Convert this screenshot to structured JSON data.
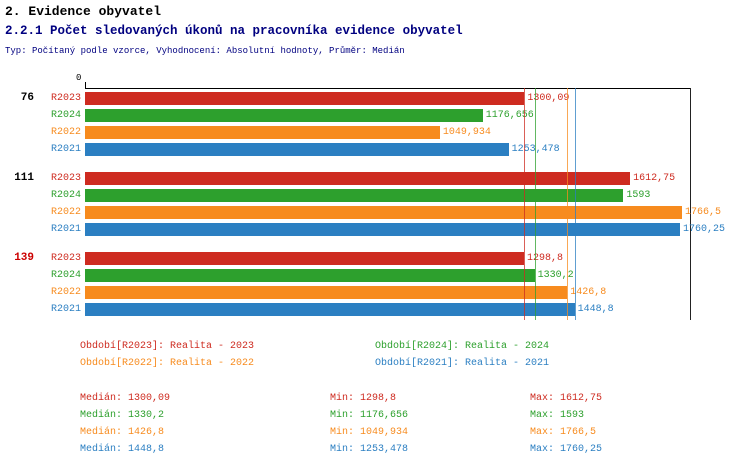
{
  "title": "2. Evidence obyvatel",
  "subtitle": "2.2.1 Počet sledovaných úkonů na pracovníka evidence obyvatel",
  "meta_line": "Typ: Počítaný podle vzorce, Vyhodnocení: Absolutní hodnoty, Průměr: Medián",
  "colors": {
    "title": "#000000",
    "subtitle": "#000080",
    "meta": "#000080",
    "axis": "#000000",
    "series": {
      "R2023": "#CE2B20",
      "R2024": "#2DA02D",
      "R2022": "#F78B1E",
      "R2021": "#2B7FC2"
    }
  },
  "chart_data": {
    "type": "bar",
    "orientation": "horizontal",
    "title": "2.2.1 Počet sledovaných úkonů na pracovníka evidence obyvatel",
    "x_axis": {
      "origin_label": "0",
      "range": [
        0,
        1790
      ],
      "gridlines": false
    },
    "series_order": [
      "R2023",
      "R2024",
      "R2022",
      "R2021"
    ],
    "groups": [
      {
        "label": "76",
        "label_color": "#000000",
        "bars": [
          {
            "series": "R2023",
            "value": 1300.09,
            "value_label": "1300,09"
          },
          {
            "series": "R2024",
            "value": 1176.656,
            "value_label": "1176,656"
          },
          {
            "series": "R2022",
            "value": 1049.934,
            "value_label": "1049,934"
          },
          {
            "series": "R2021",
            "value": 1253.478,
            "value_label": "1253,478"
          }
        ]
      },
      {
        "label": "111",
        "label_color": "#000000",
        "bars": [
          {
            "series": "R2023",
            "value": 1612.75,
            "value_label": "1612,75"
          },
          {
            "series": "R2024",
            "value": 1593,
            "value_label": "1593"
          },
          {
            "series": "R2022",
            "value": 1766.5,
            "value_label": "1766,5"
          },
          {
            "series": "R2021",
            "value": 1760.25,
            "value_label": "1760,25"
          }
        ]
      },
      {
        "label": "139",
        "label_color": "#CC0000",
        "bars": [
          {
            "series": "R2023",
            "value": 1298.8,
            "value_label": "1298,8"
          },
          {
            "series": "R2024",
            "value": 1330.2,
            "value_label": "1330,2"
          },
          {
            "series": "R2022",
            "value": 1426.8,
            "value_label": "1426,8"
          },
          {
            "series": "R2021",
            "value": 1448.8,
            "value_label": "1448,8"
          }
        ]
      }
    ],
    "median_lines": [
      {
        "series": "R2023",
        "value": 1300.09
      },
      {
        "series": "R2024",
        "value": 1330.2
      },
      {
        "series": "R2022",
        "value": 1426.8
      },
      {
        "series": "R2021",
        "value": 1448.8
      }
    ]
  },
  "legend": {
    "items": [
      {
        "series": "R2023",
        "label": "Období[R2023]: Realita - 2023"
      },
      {
        "series": "R2024",
        "label": "Období[R2024]: Realita - 2024"
      },
      {
        "series": "R2022",
        "label": "Období[R2022]: Realita - 2022"
      },
      {
        "series": "R2021",
        "label": "Období[R2021]: Realita - 2021"
      }
    ]
  },
  "stats": {
    "rows": [
      {
        "series": "R2023",
        "median_label": "Medián: 1300,09",
        "min_label": "Min: 1298,8",
        "max_label": "Max: 1612,75"
      },
      {
        "series": "R2024",
        "median_label": "Medián: 1330,2",
        "min_label": "Min: 1176,656",
        "max_label": "Max: 1593"
      },
      {
        "series": "R2022",
        "median_label": "Medián: 1426,8",
        "min_label": "Min: 1049,934",
        "max_label": "Max: 1766,5"
      },
      {
        "series": "R2021",
        "median_label": "Medián: 1448,8",
        "min_label": "Min: 1253,478",
        "max_label": "Max: 1760,25"
      }
    ]
  }
}
